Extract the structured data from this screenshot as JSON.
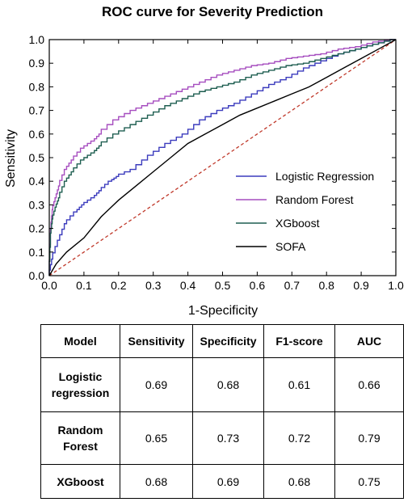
{
  "chart_data": {
    "type": "line",
    "title": "ROC curve for Severity Prediction",
    "xlabel": "1-Specificity",
    "ylabel": "Sensitivity",
    "xlim": [
      0.0,
      1.0
    ],
    "ylim": [
      0.0,
      1.0
    ],
    "xticks": [
      "0.0",
      "0.1",
      "0.2",
      "0.3",
      "0.4",
      "0.5",
      "0.6",
      "0.7",
      "0.8",
      "0.9",
      "1.0"
    ],
    "yticks": [
      "0.0",
      "0.1",
      "0.2",
      "0.3",
      "0.4",
      "0.5",
      "0.6",
      "0.7",
      "0.8",
      "0.9",
      "1.0"
    ],
    "grid": false,
    "legend_position": "center-right",
    "series": [
      {
        "name": "Logistic Regression",
        "color": "#3b3bbd",
        "x": [
          0,
          0.01,
          0.03,
          0.05,
          0.08,
          0.1,
          0.13,
          0.15,
          0.18,
          0.2,
          0.25,
          0.3,
          0.35,
          0.4,
          0.45,
          0.5,
          0.55,
          0.6,
          0.65,
          0.7,
          0.75,
          0.8,
          0.85,
          0.9,
          0.95,
          1.0
        ],
        "y": [
          0,
          0.07,
          0.15,
          0.22,
          0.27,
          0.3,
          0.33,
          0.36,
          0.4,
          0.42,
          0.45,
          0.51,
          0.56,
          0.6,
          0.66,
          0.7,
          0.73,
          0.77,
          0.81,
          0.84,
          0.88,
          0.91,
          0.94,
          0.96,
          0.98,
          1.0
        ]
      },
      {
        "name": "Random Forest",
        "color": "#a64dbf",
        "x": [
          0,
          0.005,
          0.01,
          0.02,
          0.03,
          0.05,
          0.07,
          0.1,
          0.13,
          0.15,
          0.2,
          0.25,
          0.3,
          0.35,
          0.4,
          0.45,
          0.5,
          0.55,
          0.6,
          0.65,
          0.7,
          0.75,
          0.8,
          0.85,
          0.9,
          0.95,
          1.0
        ],
        "y": [
          0,
          0.2,
          0.28,
          0.33,
          0.38,
          0.45,
          0.49,
          0.54,
          0.57,
          0.6,
          0.66,
          0.7,
          0.73,
          0.76,
          0.79,
          0.82,
          0.85,
          0.87,
          0.89,
          0.9,
          0.92,
          0.93,
          0.94,
          0.96,
          0.97,
          0.99,
          1.0
        ]
      },
      {
        "name": "XGboost",
        "color": "#1e5e50",
        "x": [
          0,
          0.005,
          0.01,
          0.02,
          0.03,
          0.05,
          0.07,
          0.1,
          0.13,
          0.15,
          0.2,
          0.25,
          0.3,
          0.35,
          0.4,
          0.45,
          0.5,
          0.55,
          0.6,
          0.65,
          0.7,
          0.75,
          0.8,
          0.85,
          0.9,
          0.95,
          1.0
        ],
        "y": [
          0,
          0.18,
          0.24,
          0.29,
          0.33,
          0.4,
          0.44,
          0.49,
          0.52,
          0.55,
          0.6,
          0.64,
          0.68,
          0.72,
          0.75,
          0.78,
          0.8,
          0.82,
          0.85,
          0.87,
          0.89,
          0.9,
          0.92,
          0.94,
          0.96,
          0.98,
          1.0
        ]
      },
      {
        "name": "SOFA",
        "color": "#000000",
        "x": [
          0,
          0.02,
          0.05,
          0.1,
          0.15,
          0.2,
          0.25,
          0.3,
          0.35,
          0.4,
          0.45,
          0.5,
          0.55,
          0.6,
          0.65,
          0.7,
          0.75,
          0.8,
          0.85,
          0.9,
          0.95,
          1.0
        ],
        "y": [
          0,
          0.05,
          0.1,
          0.16,
          0.25,
          0.32,
          0.38,
          0.44,
          0.5,
          0.56,
          0.6,
          0.64,
          0.68,
          0.71,
          0.74,
          0.77,
          0.8,
          0.84,
          0.88,
          0.92,
          0.96,
          1.0
        ]
      }
    ],
    "reference_line": {
      "color": "#c0392b",
      "dash": "dashed",
      "x": [
        0,
        1
      ],
      "y": [
        0,
        1
      ]
    }
  },
  "table": {
    "headers": [
      "Model",
      "Sensitivity",
      "Specificity",
      "F1-score",
      "AUC"
    ],
    "rows": [
      {
        "model_line1": "Logistic",
        "model_line2": "regression",
        "values": [
          "0.69",
          "0.68",
          "0.61",
          "0.66"
        ]
      },
      {
        "model_line1": "Random",
        "model_line2": "Forest",
        "values": [
          "0.65",
          "0.73",
          "0.72",
          "0.79"
        ]
      },
      {
        "model_line1": "XGboost",
        "model_line2": "",
        "values": [
          "0.68",
          "0.69",
          "0.68",
          "0.75"
        ]
      }
    ]
  }
}
